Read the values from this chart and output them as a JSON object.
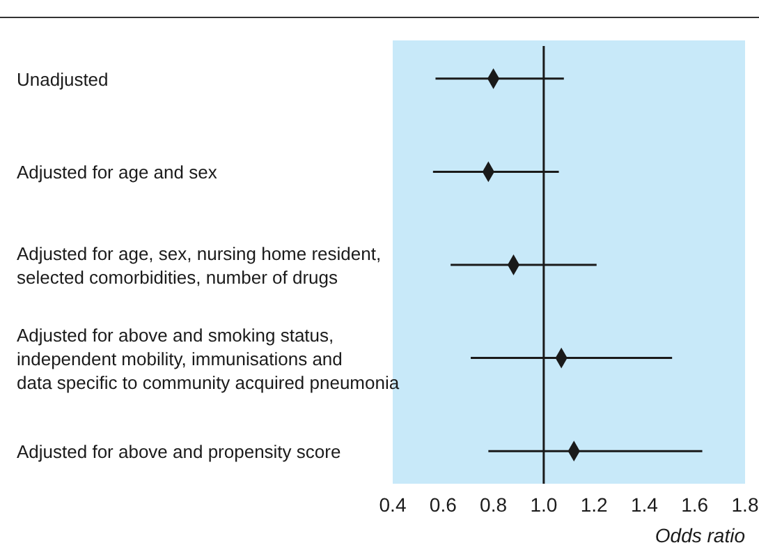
{
  "chart_data": {
    "type": "scatter",
    "orientation": "horizontal",
    "xlabel": "Odds ratio",
    "categories": [
      "Unadjusted",
      "Adjusted for age and sex",
      "Adjusted for age, sex, nursing home resident,\nselected comorbidities, number of drugs",
      "Adjusted for above and smoking status,\nindependent mobility, immunisations and\ndata specific to community acquired pneumonia",
      "Adjusted for above and propensity score"
    ],
    "series": [
      {
        "color": "#1a1a1a",
        "values": [
          0.8,
          0.78,
          0.88,
          1.07,
          1.12
        ],
        "errors": [
          [
            0.57,
            1.08
          ],
          [
            0.56,
            1.06
          ],
          [
            0.63,
            1.21
          ],
          [
            0.71,
            1.51
          ],
          [
            0.78,
            1.63
          ]
        ]
      }
    ],
    "xlim": [
      0.4,
      1.8
    ],
    "xticks": [
      0.4,
      0.6,
      0.8,
      {
        "value": 1,
        "label": "1.0"
      },
      1.2,
      1.4,
      1.6,
      1.8
    ],
    "ref_lines": [
      {
        "axis": "x",
        "value": 1,
        "color": "#1a1a1a"
      }
    ],
    "marker": "diamond",
    "grid": false,
    "legend": false
  }
}
